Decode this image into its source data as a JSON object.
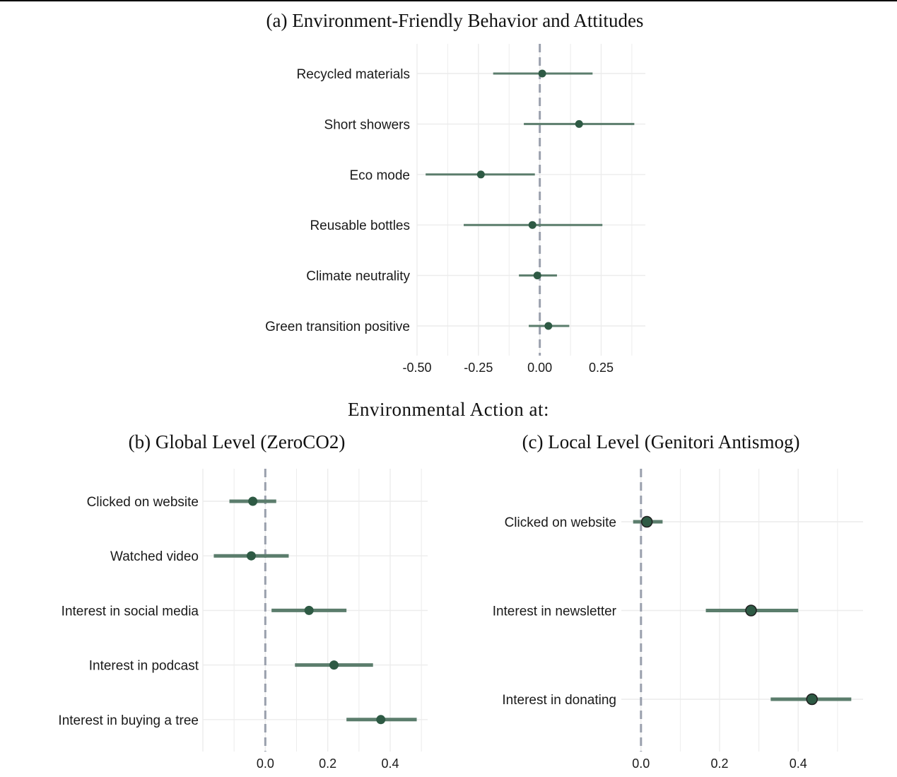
{
  "header": {
    "section_title": "Environmental Action at:"
  },
  "colors": {
    "bar": "#5b7d6c",
    "point": "#2e5a44",
    "point_outline": "#1f1f1f",
    "zero_line": "#9aa0ad",
    "grid": "#ececec"
  },
  "chart_data": [
    {
      "type": "scatter",
      "title": "(a) Environment-Friendly Behavior and Attitudes",
      "categories": [
        "Recycled materials",
        "Short showers",
        "Eco mode",
        "Reusable bottles",
        "Climate neutrality",
        "Green transition positive"
      ],
      "estimates": [
        0.01,
        0.16,
        -0.24,
        -0.03,
        -0.01,
        0.035
      ],
      "ci_low": [
        -0.19,
        -0.065,
        -0.465,
        -0.31,
        -0.085,
        -0.045
      ],
      "ci_high": [
        0.215,
        0.385,
        -0.02,
        0.255,
        0.07,
        0.12
      ],
      "xlim": [
        -0.5,
        0.43
      ],
      "xticks": [
        -0.5,
        -0.25,
        0.0,
        0.25
      ],
      "xtick_labels": [
        "-0.50",
        "-0.25",
        "0.00",
        "0.25"
      ],
      "reference_line": 0,
      "grid": true
    },
    {
      "type": "scatter",
      "title": "(b) Global Level (ZeroCO2)",
      "categories": [
        "Clicked on website",
        "Watched video",
        "Interest in social media",
        "Interest in podcast",
        "Interest in buying a tree"
      ],
      "estimates": [
        -0.04,
        -0.045,
        0.14,
        0.22,
        0.37
      ],
      "ci_low": [
        -0.115,
        -0.165,
        0.02,
        0.095,
        0.26
      ],
      "ci_high": [
        0.035,
        0.075,
        0.26,
        0.345,
        0.485
      ],
      "xlim": [
        -0.2,
        0.52
      ],
      "xticks": [
        0.0,
        0.2,
        0.4
      ],
      "xtick_labels": [
        "0.0",
        "0.2",
        "0.4"
      ],
      "reference_line": 0,
      "grid": true
    },
    {
      "type": "scatter",
      "title": "(c) Local Level (Genitori Antismog)",
      "categories": [
        "Clicked on website",
        "Interest in newsletter",
        "Interest in donating"
      ],
      "estimates": [
        0.015,
        0.28,
        0.435
      ],
      "ci_low": [
        -0.02,
        0.165,
        0.33
      ],
      "ci_high": [
        0.055,
        0.4,
        0.535
      ],
      "xlim": [
        -0.05,
        0.565
      ],
      "xticks": [
        0.0,
        0.2,
        0.4
      ],
      "xtick_labels": [
        "0.0",
        "0.2",
        "0.4"
      ],
      "reference_line": 0,
      "grid": true
    }
  ]
}
